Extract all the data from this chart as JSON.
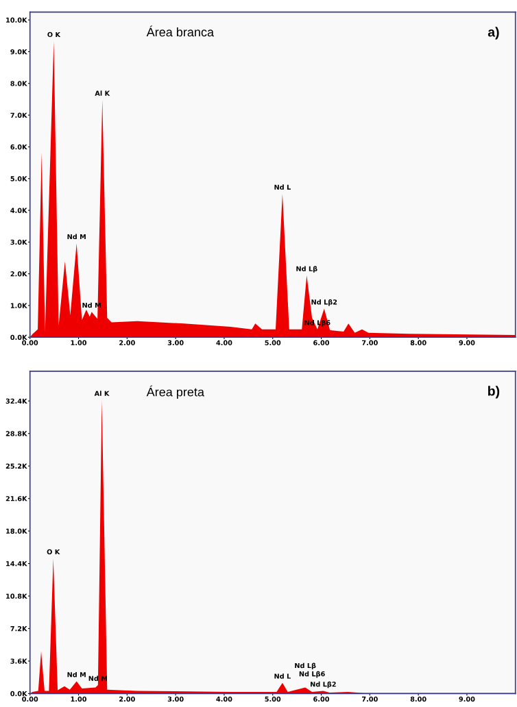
{
  "chart_data": [
    {
      "type": "area",
      "title": "Área branca",
      "annotations": [
        "a)",
        {
          "text": "O K",
          "x": 0.49,
          "y": 9330
        },
        {
          "text": "Al K",
          "x": 1.49,
          "y": 7480
        },
        {
          "text": "Nd M",
          "x": 0.96,
          "y": 2960
        },
        {
          "text": "Nd M",
          "x": 1.27,
          "y": 800
        },
        {
          "text": "Nd L",
          "x": 5.2,
          "y": 4520
        },
        {
          "text": "Nd Lβ",
          "x": 5.7,
          "y": 1950
        },
        {
          "text": "Nd Lβ2",
          "x": 6.06,
          "y": 900
        },
        {
          "text": "Nd Lβ6",
          "x": 5.92,
          "y": 250
        }
      ],
      "x": [
        0.0,
        0.05,
        0.16,
        0.24,
        0.31,
        0.49,
        0.59,
        0.72,
        0.83,
        0.96,
        1.07,
        1.16,
        1.23,
        1.27,
        1.39,
        1.49,
        1.59,
        1.68,
        2.21,
        3.17,
        4.13,
        4.57,
        4.64,
        4.78,
        5.06,
        5.2,
        5.34,
        5.6,
        5.7,
        5.81,
        5.92,
        6.06,
        6.18,
        6.46,
        6.56,
        6.69,
        6.84,
        6.97,
        7.81,
        10.0
      ],
      "series": [
        {
          "color": "#ee0000",
          "values": [
            0,
            100,
            250,
            5830,
            180,
            9330,
            360,
            2390,
            690,
            2960,
            540,
            870,
            650,
            800,
            580,
            7480,
            610,
            470,
            510,
            430,
            330,
            250,
            430,
            250,
            250,
            4520,
            250,
            250,
            1950,
            610,
            250,
            900,
            220,
            180,
            430,
            140,
            250,
            140,
            110,
            70
          ]
        }
      ],
      "xlim": [
        0,
        10
      ],
      "ylim": [
        0,
        10250
      ],
      "xticks": [
        {
          "value": 0,
          "label": "0.00"
        },
        {
          "value": 1,
          "label": "1.00"
        },
        {
          "value": 2,
          "label": "2.00"
        },
        {
          "value": 3,
          "label": "3.00"
        },
        {
          "value": 4,
          "label": "4.00"
        },
        {
          "value": 5,
          "label": "5.00"
        },
        {
          "value": 6,
          "label": "6.00"
        },
        {
          "value": 7,
          "label": "7.00"
        },
        {
          "value": 8,
          "label": "8.00"
        },
        {
          "value": 9,
          "label": "9.00"
        }
      ],
      "yticks": [
        {
          "value": 0,
          "label": "0.0K"
        },
        {
          "value": 1000,
          "label": "1.0K"
        },
        {
          "value": 2000,
          "label": "2.0K"
        },
        {
          "value": 3000,
          "label": "3.0K"
        },
        {
          "value": 4000,
          "label": "4.0K"
        },
        {
          "value": 5000,
          "label": "5.0K"
        },
        {
          "value": 6000,
          "label": "6.0K"
        },
        {
          "value": 7000,
          "label": "7.0K"
        },
        {
          "value": 8000,
          "label": "8.0K"
        },
        {
          "value": 9000,
          "label": "9.0K"
        },
        {
          "value": 10000,
          "label": "10.0K"
        }
      ],
      "grid": false,
      "legend": false,
      "marker": "none"
    },
    {
      "type": "area",
      "title": "Área preta",
      "annotations": [
        "b)",
        {
          "text": "Al K",
          "x": 1.48,
          "y": 32500
        },
        {
          "text": "O K",
          "x": 0.48,
          "y": 14960
        },
        {
          "text": "Nd M",
          "x": 0.96,
          "y": 1360
        },
        {
          "text": "Nd M",
          "x": 1.4,
          "y": 940
        },
        {
          "text": "Nd L",
          "x": 5.2,
          "y": 1190
        },
        {
          "text": "Nd Lβ2",
          "x": 6.04,
          "y": 300
        },
        {
          "text": "Nd Lβ6",
          "x": 5.81,
          "y": 180
        },
        {
          "text": "Nd Lβ",
          "x": 5.67,
          "y": 680
        }
      ],
      "x": [
        0.0,
        0.05,
        0.17,
        0.23,
        0.3,
        0.39,
        0.48,
        0.57,
        0.71,
        0.82,
        0.96,
        1.07,
        1.35,
        1.4,
        1.48,
        1.59,
        2.21,
        4.13,
        5.08,
        5.2,
        5.31,
        5.67,
        5.81,
        6.04,
        6.17,
        6.55,
        6.88,
        10.0
      ],
      "series": [
        {
          "color": "#ee0000",
          "values": [
            0,
            180,
            300,
            4680,
            300,
            300,
            14960,
            380,
            810,
            430,
            1360,
            560,
            680,
            940,
            32500,
            430,
            300,
            180,
            180,
            1190,
            180,
            680,
            180,
            300,
            100,
            180,
            50,
            50
          ]
        }
      ],
      "xlim": [
        0,
        10
      ],
      "ylim": [
        0,
        35700
      ],
      "xticks": [
        {
          "value": 0,
          "label": "0.00"
        },
        {
          "value": 1,
          "label": "1.00"
        },
        {
          "value": 2,
          "label": "2.00"
        },
        {
          "value": 3,
          "label": "3.00"
        },
        {
          "value": 4,
          "label": "4.00"
        },
        {
          "value": 5,
          "label": "5.00"
        },
        {
          "value": 6,
          "label": "6.00"
        },
        {
          "value": 7,
          "label": "7.00"
        },
        {
          "value": 8,
          "label": "8.00"
        },
        {
          "value": 9,
          "label": "9.00"
        }
      ],
      "yticks": [
        {
          "value": 0,
          "label": "0.0K"
        },
        {
          "value": 3600,
          "label": "3.6K"
        },
        {
          "value": 7200,
          "label": "7.2K"
        },
        {
          "value": 10800,
          "label": "10.8K"
        },
        {
          "value": 14400,
          "label": "14.4K"
        },
        {
          "value": 18000,
          "label": "18.0K"
        },
        {
          "value": 21600,
          "label": "21.6K"
        },
        {
          "value": 25200,
          "label": "25.2K"
        },
        {
          "value": 28800,
          "label": "28.8K"
        },
        {
          "value": 32400,
          "label": "32.4K"
        }
      ],
      "grid": false,
      "legend": false,
      "marker": "none"
    }
  ]
}
